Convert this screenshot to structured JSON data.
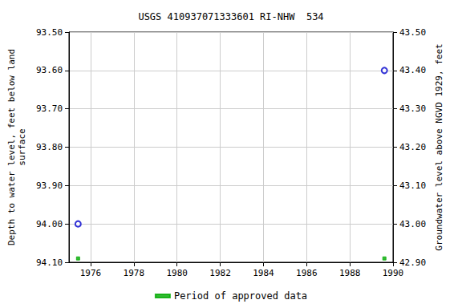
{
  "chart_data": {
    "type": "scatter",
    "title": "USGS 410937071333601 RI-NHW  534",
    "x_label": "",
    "y_label": "Depth to water level, feet below land\nsurface",
    "y2_label": "Groundwater level above NGVD 1929, feet",
    "xlim": [
      1975,
      1990
    ],
    "xticks": [
      1976,
      1978,
      1980,
      1982,
      1984,
      1986,
      1988,
      1990
    ],
    "ylim": [
      94.1,
      93.5
    ],
    "yticks": [
      {
        "value": 93.5,
        "label": "93.50"
      },
      {
        "value": 93.6,
        "label": "93.60"
      },
      {
        "value": 93.7,
        "label": "93.70"
      },
      {
        "value": 93.8,
        "label": "93.80"
      },
      {
        "value": 93.9,
        "label": "93.90"
      },
      {
        "value": 94.0,
        "label": "94.00"
      },
      {
        "value": 94.1,
        "label": "94.10"
      }
    ],
    "y2lim": [
      42.9,
      43.5
    ],
    "y2ticks": [
      {
        "value": 42.9,
        "label": "42.90"
      },
      {
        "value": 43.0,
        "label": "43.00"
      },
      {
        "value": 43.1,
        "label": "43.10"
      },
      {
        "value": 43.2,
        "label": "43.20"
      },
      {
        "value": 43.3,
        "label": "43.30"
      },
      {
        "value": 43.4,
        "label": "43.40"
      },
      {
        "value": 43.5,
        "label": "43.50"
      }
    ],
    "grid": true,
    "legend": "bottom",
    "series": [
      {
        "color": "#0000cc",
        "marker": "open_circle",
        "x": [
          1975.42,
          1989.6
        ],
        "values": [
          94.0,
          93.6
        ]
      },
      {
        "name": "Period of approved data",
        "color": "#00aa00",
        "marker": "square",
        "x": [
          1975.42,
          1989.6
        ],
        "values": [
          94.09,
          94.09
        ]
      }
    ]
  }
}
